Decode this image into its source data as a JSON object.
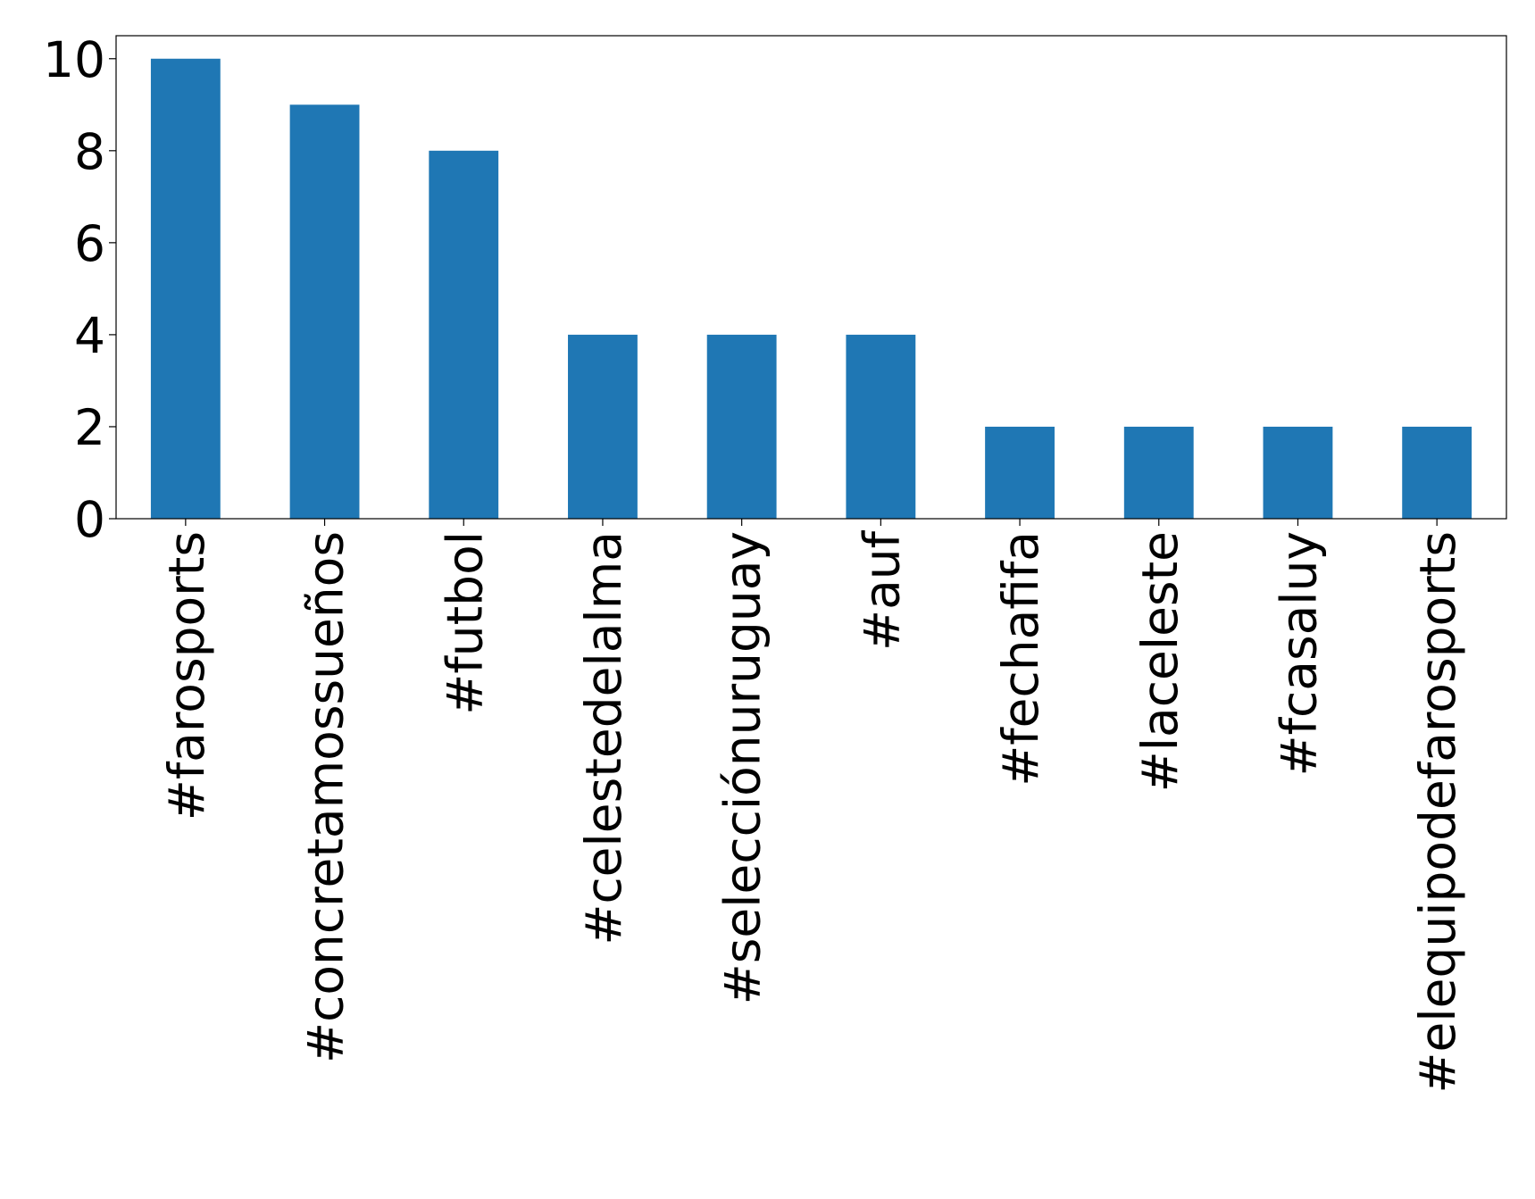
{
  "chart_data": {
    "type": "bar",
    "categories": [
      "#farosports",
      "#concretamossueños",
      "#futbol",
      "#celestedelalma",
      "#selecciónuruguay",
      "#auf",
      "#fechafifa",
      "#laceleste",
      "#fcasaluy",
      "#elequipodefarosports"
    ],
    "values": [
      10,
      9,
      8,
      4,
      4,
      4,
      2,
      2,
      2,
      2
    ],
    "color": "#1f77b4",
    "ylim": [
      0,
      10.5
    ],
    "yticks": [
      0,
      2,
      4,
      6,
      8,
      10
    ],
    "grid": false
  }
}
